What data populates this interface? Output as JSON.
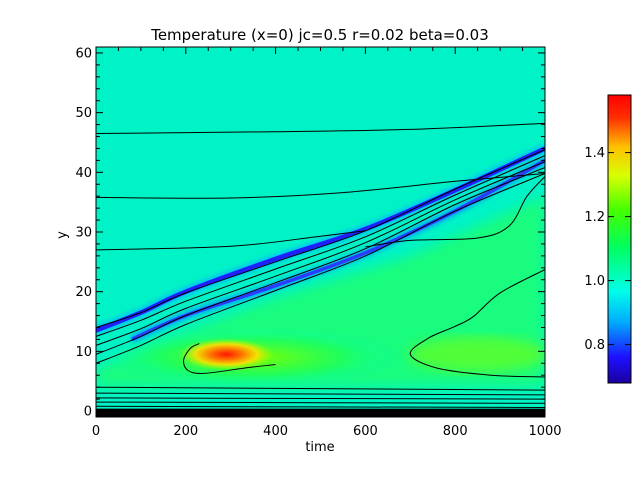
{
  "chart_data": {
    "type": "heatmap",
    "title": "Temperature (x=0) jc=0.5 r=0.02 beta=0.03",
    "xlabel": "time",
    "ylabel": "y",
    "xlim": [
      0,
      1000
    ],
    "ylim": [
      -1,
      61
    ],
    "x_ticks": [
      "0",
      "200",
      "400",
      "600",
      "800",
      "1000"
    ],
    "y_ticks": [
      "0",
      "10",
      "20",
      "30",
      "40",
      "50",
      "60"
    ],
    "colorbar": {
      "range": [
        0.68,
        1.58
      ],
      "ticks": [
        "0.8",
        "1.0",
        "1.2",
        "1.4"
      ],
      "colormap": "rainbow"
    },
    "background_value": 1.12,
    "features": {
      "cold_front_upper": [
        [
          0,
          13.5
        ],
        [
          100,
          16.5
        ],
        [
          200,
          20
        ],
        [
          400,
          25.5
        ],
        [
          600,
          30.5
        ],
        [
          800,
          37
        ],
        [
          1000,
          44
        ]
      ],
      "cold_front_lower": [
        [
          80,
          12
        ],
        [
          200,
          16
        ],
        [
          400,
          21
        ],
        [
          600,
          26.5
        ],
        [
          800,
          33.5
        ],
        [
          1000,
          42
        ]
      ],
      "hot_spot": {
        "center": [
          290,
          9.5
        ],
        "peak_value": 1.56
      },
      "contour_lines": [
        [
          [
            0,
            46.5
          ],
          [
            400,
            46.8
          ],
          [
            700,
            47.2
          ],
          [
            1000,
            48.2
          ]
        ],
        [
          [
            0,
            35.8
          ],
          [
            300,
            35.7
          ],
          [
            550,
            36.6
          ],
          [
            800,
            38.5
          ],
          [
            1000,
            39.8
          ]
        ],
        [
          [
            0,
            27
          ],
          [
            300,
            27.6
          ],
          [
            500,
            29.3
          ],
          [
            600,
            30.2
          ]
        ],
        [
          [
            0,
            14
          ],
          [
            100,
            16.5
          ],
          [
            200,
            19.8
          ],
          [
            400,
            25
          ],
          [
            600,
            30.2
          ],
          [
            800,
            37.2
          ],
          [
            1000,
            43.8
          ]
        ],
        [
          [
            0,
            12.5
          ],
          [
            100,
            15.2
          ],
          [
            200,
            18.4
          ],
          [
            400,
            23.8
          ],
          [
            600,
            29.2
          ],
          [
            800,
            36.2
          ],
          [
            1000,
            42.8
          ]
        ],
        [
          [
            0,
            11
          ],
          [
            100,
            13.8
          ],
          [
            200,
            17.2
          ],
          [
            400,
            22.6
          ],
          [
            600,
            28.2
          ],
          [
            800,
            35.4
          ],
          [
            1000,
            41.8
          ]
        ],
        [
          [
            0,
            9.5
          ],
          [
            100,
            12.5
          ],
          [
            200,
            16
          ],
          [
            400,
            21.5
          ],
          [
            600,
            27.2
          ],
          [
            800,
            34.6
          ],
          [
            1000,
            40.8
          ]
        ],
        [
          [
            0,
            8
          ],
          [
            100,
            11
          ],
          [
            200,
            14.5
          ],
          [
            400,
            20.2
          ],
          [
            600,
            26
          ],
          [
            800,
            33.5
          ],
          [
            1000,
            39.8
          ]
        ],
        [
          [
            1000,
            39.3
          ],
          [
            960,
            36
          ],
          [
            920,
            31
          ],
          [
            850,
            29
          ],
          [
            700,
            28.6
          ],
          [
            600,
            27.5
          ]
        ],
        [
          [
            230,
            11.3
          ],
          [
            210,
            10.5
          ],
          [
            195,
            8.5
          ],
          [
            205,
            6.8
          ],
          [
            240,
            6.3
          ],
          [
            330,
            7.2
          ],
          [
            400,
            7.8
          ]
        ],
        [
          [
            1000,
            23.7
          ],
          [
            900,
            19.8
          ],
          [
            840,
            15.8
          ],
          [
            800,
            14.2
          ],
          [
            740,
            12.2
          ],
          [
            700,
            9.5
          ],
          [
            760,
            7.2
          ],
          [
            880,
            6
          ],
          [
            1000,
            5.7
          ]
        ],
        [
          [
            0,
            4
          ],
          [
            1000,
            3.5
          ]
        ],
        [
          [
            0,
            3
          ],
          [
            1000,
            2.7
          ]
        ],
        [
          [
            0,
            2.2
          ],
          [
            1000,
            2
          ]
        ],
        [
          [
            0,
            1.5
          ],
          [
            1000,
            1.3
          ]
        ],
        [
          [
            0,
            0.8
          ],
          [
            1000,
            0.6
          ]
        ]
      ]
    }
  }
}
